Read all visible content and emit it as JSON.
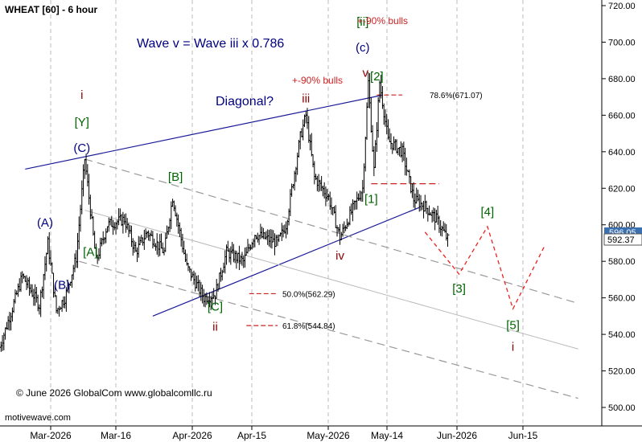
{
  "chart_data": {
    "type": "bar",
    "title": "WHEAT [60] - 6 hour",
    "x_ticks": [
      "Mar-2026",
      "Mar-16",
      "Apr-2026",
      "Apr-15",
      "May-2026",
      "May-14",
      "Jun-2026",
      "Jun-15"
    ],
    "y_ticks": [
      "720.00",
      "700.00",
      "680.00",
      "660.00",
      "640.00",
      "620.00",
      "600.00",
      "580.00",
      "560.00",
      "540.00",
      "520.00",
      "500.00"
    ],
    "ylim": [
      496,
      723
    ],
    "price_labels": {
      "current": "592.37",
      "previous": "596.05"
    },
    "headline": "Wave v = Wave iii x 0.786",
    "pattern_label": "Diagonal?",
    "bull_notes": [
      "+-90% bulls",
      "+-90% bulls"
    ],
    "fib_levels": [
      {
        "label": "78.6%(671.07)",
        "value": 671.07
      },
      {
        "label": "50.0%(562.29)",
        "value": 562.29
      },
      {
        "label": "61.8%(544.84)",
        "value": 544.84
      }
    ],
    "wave_labels": [
      {
        "text": "(A)",
        "color": "#000080",
        "day": -1,
        "price": 599
      },
      {
        "text": "(B)",
        "color": "#000080",
        "day": 2,
        "price": 565
      },
      {
        "text": "i",
        "color": "#8b0000",
        "day": 5.5,
        "price": 669
      },
      {
        "text": "[Y]",
        "color": "#006400",
        "day": 5.5,
        "price": 654
      },
      {
        "text": "(C)",
        "color": "#000080",
        "day": 5.5,
        "price": 640
      },
      {
        "text": "[A]",
        "color": "#006400",
        "day": 7,
        "price": 583
      },
      {
        "text": "[B]",
        "color": "#006400",
        "day": 22,
        "price": 624
      },
      {
        "text": "[C]",
        "color": "#006400",
        "day": 29,
        "price": 553
      },
      {
        "text": "ii",
        "color": "#8b0000",
        "day": 29,
        "price": 542
      },
      {
        "text": "iii",
        "color": "#8b0000",
        "day": 45,
        "price": 667
      },
      {
        "text": "iv",
        "color": "#8b0000",
        "day": 51,
        "price": 581
      },
      {
        "text": "(c)",
        "color": "#000080",
        "day": 55,
        "price": 695
      },
      {
        "text": "[ii]",
        "color": "#006400",
        "day": 55,
        "price": 709
      },
      {
        "text": "v",
        "color": "#8b0000",
        "day": 55.5,
        "price": 681
      },
      {
        "text": "[2]",
        "color": "#006400",
        "day": 57.5,
        "price": 679
      },
      {
        "text": "[1]",
        "color": "#006400",
        "day": 56.5,
        "price": 612
      },
      {
        "text": "[3]",
        "color": "#006400",
        "day": 72,
        "price": 563
      },
      {
        "text": "[4]",
        "color": "#006400",
        "day": 77,
        "price": 605
      },
      {
        "text": "[5]",
        "color": "#006400",
        "day": 81.5,
        "price": 543
      },
      {
        "text": "i",
        "color": "#8b0000",
        "day": 81.5,
        "price": 531
      }
    ],
    "projection": [
      {
        "day": 66,
        "price": 596
      },
      {
        "day": 72,
        "price": 573
      },
      {
        "day": 77,
        "price": 599
      },
      {
        "day": 81.5,
        "price": 554
      },
      {
        "day": 87,
        "price": 588
      }
    ],
    "copyright": "© June 2026 GlobalCom www.globalcomllc.ru",
    "watermark": "motivewave.com"
  }
}
